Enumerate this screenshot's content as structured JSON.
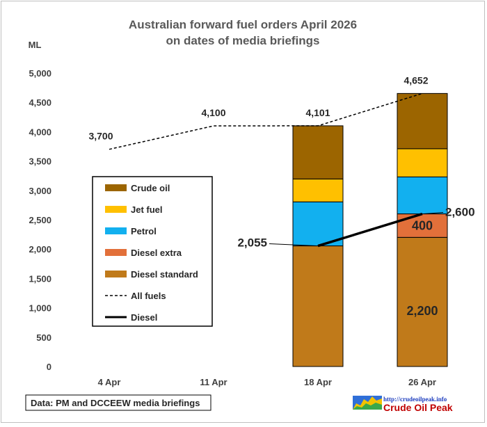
{
  "chart_data": {
    "type": "bar",
    "title": [
      "Australian forward fuel orders April 2026",
      "on dates of media briefings"
    ],
    "ylabel": "ML",
    "categories": [
      "4 Apr",
      "11 Apr",
      "18 Apr",
      "26 Apr"
    ],
    "ylim": [
      0,
      5000
    ],
    "yticks": [
      "0",
      "500",
      "1,000",
      "1,500",
      "2,000",
      "2,500",
      "3,000",
      "3,500",
      "4,000",
      "4,500",
      "5,000"
    ],
    "stacked_series": [
      {
        "name": "Diesel standard",
        "color": "#c07a1a",
        "values": [
          null,
          null,
          2055,
          2200
        ],
        "labels": [
          null,
          null,
          null,
          "2,200"
        ]
      },
      {
        "name": "Diesel extra",
        "color": "#e2703a",
        "values": [
          null,
          null,
          0,
          400
        ],
        "labels": [
          null,
          null,
          null,
          "400"
        ]
      },
      {
        "name": "Petrol",
        "color": "#12b0ef",
        "values": [
          null,
          null,
          750,
          630
        ]
      },
      {
        "name": "Jet fuel",
        "color": "#ffc000",
        "values": [
          null,
          null,
          390,
          480
        ]
      },
      {
        "name": "Crude oil",
        "color": "#9c6500",
        "values": [
          null,
          null,
          906,
          942
        ]
      }
    ],
    "line_series": [
      {
        "name": "All fuels",
        "style": "dashed",
        "color": "#000000",
        "values": [
          3700,
          4100,
          4101,
          4652
        ],
        "labels": [
          "3,700",
          "4,100",
          "4,101",
          "4,652"
        ]
      },
      {
        "name": "Diesel",
        "style": "solid",
        "color": "#000000",
        "values": [
          null,
          null,
          2055,
          2600
        ],
        "labels": [
          null,
          null,
          "2,055",
          "2,600"
        ]
      }
    ],
    "legend": {
      "position": "left",
      "items": [
        "Crude oil",
        "Jet fuel",
        "Petrol",
        "Diesel extra",
        "Diesel standard",
        "All fuels",
        "Diesel"
      ]
    },
    "grid": false
  },
  "source_note": "Data: PM and DCCEEW media briefings",
  "branding": {
    "url": "http://crudeoilpeak.info",
    "name": "Crude Oil Peak"
  }
}
